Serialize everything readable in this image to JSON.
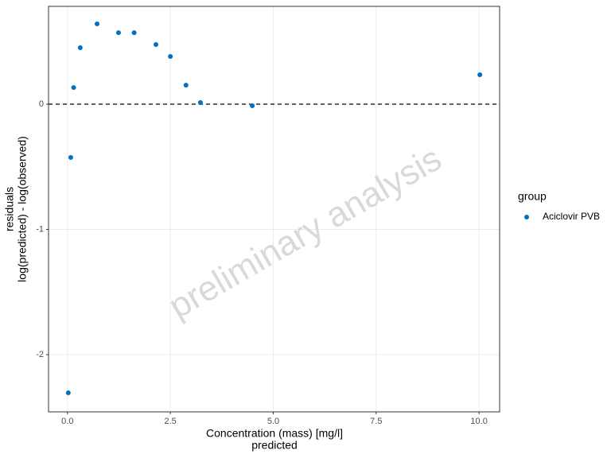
{
  "chart_data": {
    "type": "scatter",
    "x_label": "Concentration (mass) [mg/l]",
    "x_sublabel": "predicted",
    "y_label": "residuals",
    "y_sublabel": "log(predicted) - log(observed)",
    "watermark": "preliminary analysis",
    "legend_title": "group",
    "x": [
      0.02,
      0.08,
      0.15,
      0.31,
      0.72,
      1.24,
      1.62,
      2.15,
      2.5,
      2.88,
      3.23,
      4.49,
      10.02
    ],
    "series": [
      {
        "name": "Aciclovir PVB",
        "color": "#0070c0",
        "values": [
          -2.305,
          -0.425,
          0.133,
          0.451,
          0.641,
          0.571,
          0.571,
          0.476,
          0.381,
          0.152,
          0.013,
          -0.013,
          0.235
        ]
      }
    ],
    "reference_line": 0,
    "xlim": [
      -0.46,
      10.5
    ],
    "ylim": [
      -2.457,
      0.781
    ],
    "xticks": [
      {
        "value": 0,
        "label": "0.0"
      },
      2.5,
      {
        "value": 5,
        "label": "5.0"
      },
      7.5,
      {
        "value": 10,
        "label": "10.0"
      }
    ],
    "yticks": [
      -2,
      -1,
      0
    ],
    "grid": true
  }
}
